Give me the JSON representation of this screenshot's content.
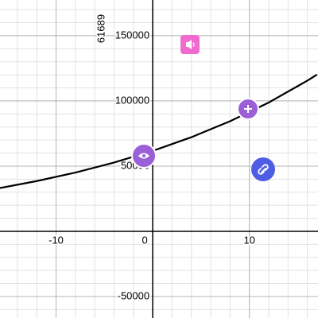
{
  "chart_data": {
    "type": "line",
    "annotation": "61689",
    "x": [
      -16,
      -12,
      -8,
      -4,
      0,
      4,
      8,
      12,
      16,
      17
    ],
    "series": [
      {
        "color": "#000000",
        "values": [
          32937,
          38530,
          45076,
          52732,
          61689,
          72167,
          84426,
          98765,
          115543,
          120165
        ]
      }
    ],
    "xlim": [
      -15.8,
      17.1
    ],
    "ylim": [
      -66500,
      177400
    ],
    "xticks": [
      -10,
      0,
      10
    ],
    "yticks": [
      -50000,
      50000,
      100000,
      150000
    ],
    "grid": true
  }
}
